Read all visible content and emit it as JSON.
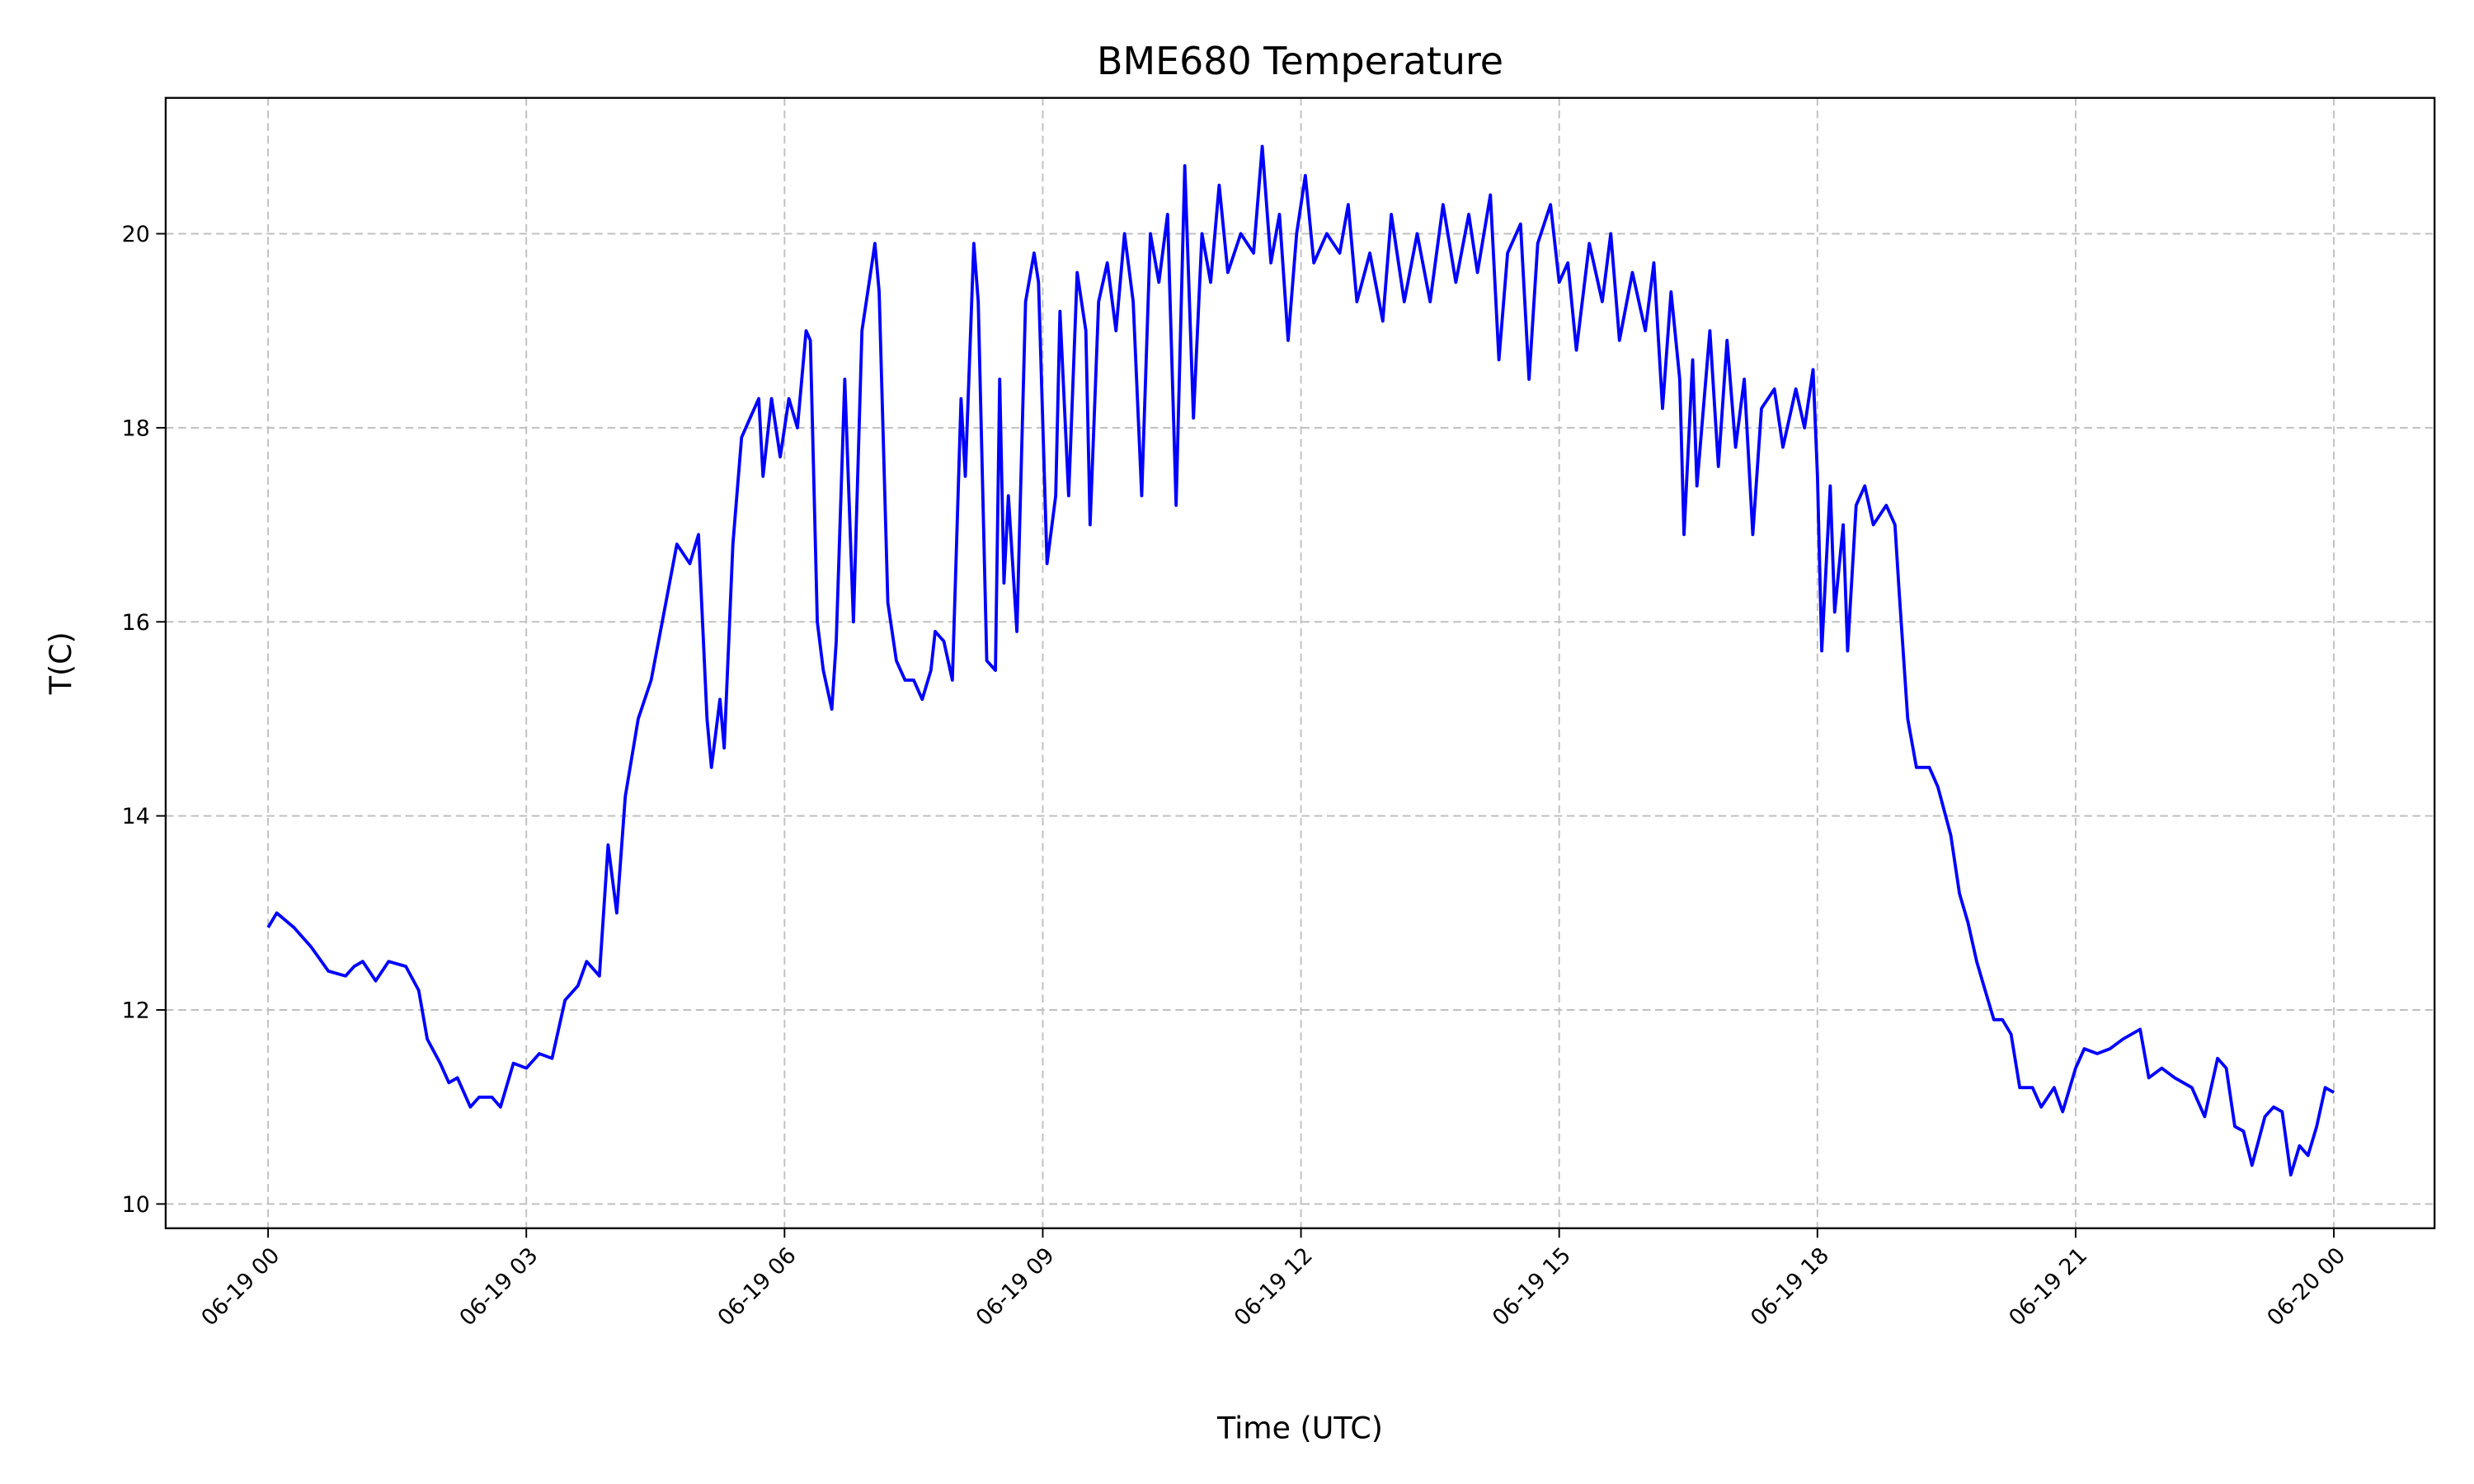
{
  "chart_data": {
    "type": "line",
    "title": "BME680 Temperature",
    "xlabel": "Time (UTC)",
    "ylabel": "T(C)",
    "xlim_hours": [
      -1.19,
      25.17
    ],
    "ylim": [
      9.75,
      21.4
    ],
    "grid": true,
    "x_tick_hours": [
      0,
      3,
      6,
      9,
      12,
      15,
      18,
      21,
      24
    ],
    "x_tick_labels": [
      "06-19 00",
      "06-19 03",
      "06-19 06",
      "06-19 09",
      "06-19 12",
      "06-19 15",
      "06-19 18",
      "06-19 21",
      "06-20 00"
    ],
    "y_ticks": [
      10,
      12,
      14,
      16,
      18,
      20
    ],
    "y_tick_labels": [
      "10",
      "12",
      "14",
      "16",
      "18",
      "20"
    ],
    "series": [
      {
        "name": "Temperature",
        "color": "#0000ff",
        "x_hours": [
          0,
          0.1,
          0.3,
          0.5,
          0.7,
          0.9,
          1.0,
          1.1,
          1.25,
          1.4,
          1.6,
          1.75,
          1.85,
          2.0,
          2.1,
          2.2,
          2.35,
          2.45,
          2.6,
          2.7,
          2.85,
          3.0,
          3.15,
          3.3,
          3.45,
          3.6,
          3.7,
          3.8,
          3.85,
          3.95,
          4.05,
          4.15,
          4.3,
          4.45,
          4.6,
          4.75,
          4.9,
          5.0,
          5.1,
          5.15,
          5.25,
          5.3,
          5.4,
          5.5,
          5.6,
          5.7,
          5.75,
          5.85,
          5.95,
          6.05,
          6.15,
          6.25,
          6.3,
          6.38,
          6.45,
          6.55,
          6.6,
          6.7,
          6.8,
          6.9,
          7.0,
          7.05,
          7.1,
          7.2,
          7.3,
          7.4,
          7.5,
          7.6,
          7.7,
          7.75,
          7.85,
          7.95,
          8.05,
          8.1,
          8.2,
          8.25,
          8.35,
          8.45,
          8.5,
          8.55,
          8.6,
          8.7,
          8.8,
          8.9,
          8.95,
          9.05,
          9.15,
          9.2,
          9.3,
          9.4,
          9.5,
          9.55,
          9.65,
          9.75,
          9.85,
          9.95,
          10.05,
          10.15,
          10.25,
          10.35,
          10.45,
          10.55,
          10.65,
          10.75,
          10.85,
          10.95,
          11.05,
          11.15,
          11.3,
          11.45,
          11.55,
          11.65,
          11.75,
          11.85,
          11.95,
          12.05,
          12.15,
          12.3,
          12.45,
          12.55,
          12.65,
          12.8,
          12.95,
          13.05,
          13.2,
          13.35,
          13.5,
          13.65,
          13.8,
          13.95,
          14.05,
          14.2,
          14.3,
          14.4,
          14.55,
          14.65,
          14.75,
          14.9,
          15.0,
          15.1,
          15.2,
          15.35,
          15.5,
          15.6,
          15.7,
          15.85,
          16.0,
          16.1,
          16.2,
          16.3,
          16.4,
          16.45,
          16.55,
          16.6,
          16.75,
          16.85,
          16.95,
          17.05,
          17.15,
          17.25,
          17.35,
          17.5,
          17.6,
          17.75,
          17.85,
          17.95,
          18.0,
          18.05,
          18.15,
          18.2,
          18.3,
          18.35,
          18.45,
          18.55,
          18.65,
          18.8,
          18.9,
          18.95,
          19.05,
          19.15,
          19.3,
          19.4,
          19.55,
          19.65,
          19.75,
          19.85,
          19.95,
          20.05,
          20.15,
          20.25,
          20.35,
          20.5,
          20.6,
          20.75,
          20.85,
          21.0,
          21.1,
          21.25,
          21.4,
          21.55,
          21.75,
          21.85,
          22.0,
          22.15,
          22.35,
          22.5,
          22.65,
          22.75,
          22.85,
          22.95,
          23.05,
          23.2,
          23.3,
          23.4,
          23.5,
          23.6,
          23.7,
          23.8,
          23.9,
          24.0
        ],
        "y": [
          12.85,
          13.0,
          12.85,
          12.65,
          12.4,
          12.35,
          12.45,
          12.5,
          12.3,
          12.5,
          12.45,
          12.2,
          11.7,
          11.45,
          11.25,
          11.3,
          11.0,
          11.1,
          11.1,
          11.0,
          11.45,
          11.4,
          11.55,
          11.5,
          12.1,
          12.25,
          12.5,
          12.4,
          12.35,
          13.7,
          13.0,
          14.2,
          15.0,
          15.4,
          16.1,
          16.8,
          16.6,
          16.9,
          15.0,
          14.5,
          15.2,
          14.7,
          16.8,
          17.9,
          18.1,
          18.3,
          17.5,
          18.3,
          17.7,
          18.3,
          18.0,
          19.0,
          18.9,
          16.0,
          15.5,
          15.1,
          15.8,
          18.5,
          16.0,
          19.0,
          19.6,
          19.9,
          19.4,
          16.2,
          15.6,
          15.4,
          15.4,
          15.2,
          15.5,
          15.9,
          15.8,
          15.4,
          18.3,
          17.5,
          19.9,
          19.3,
          15.6,
          15.5,
          18.5,
          16.4,
          17.3,
          15.9,
          19.3,
          19.8,
          19.5,
          16.6,
          17.3,
          19.2,
          17.3,
          19.6,
          19.0,
          17.0,
          19.3,
          19.7,
          19.0,
          20.0,
          19.3,
          17.3,
          20.0,
          19.5,
          20.2,
          17.2,
          20.7,
          18.1,
          20.0,
          19.5,
          20.5,
          19.6,
          20.0,
          19.8,
          20.9,
          19.7,
          20.2,
          18.9,
          20.0,
          20.6,
          19.7,
          20.0,
          19.8,
          20.3,
          19.3,
          19.8,
          19.1,
          20.2,
          19.3,
          20.0,
          19.3,
          20.3,
          19.5,
          20.2,
          19.6,
          20.4,
          18.7,
          19.8,
          20.1,
          18.5,
          19.9,
          20.3,
          19.5,
          19.7,
          18.8,
          19.9,
          19.3,
          20.0,
          18.9,
          19.6,
          19.0,
          19.7,
          18.2,
          19.4,
          18.5,
          16.9,
          18.7,
          17.4,
          19.0,
          17.6,
          18.9,
          17.8,
          18.5,
          16.9,
          18.2,
          18.4,
          17.8,
          18.4,
          18.0,
          18.6,
          17.5,
          15.7,
          17.4,
          16.1,
          17.0,
          15.7,
          17.2,
          17.4,
          17.0,
          17.2,
          17.0,
          16.3,
          15.0,
          14.5,
          14.5,
          14.3,
          13.8,
          13.2,
          12.9,
          12.5,
          12.2,
          11.9,
          11.9,
          11.75,
          11.2,
          11.2,
          11.0,
          11.2,
          10.95,
          11.4,
          11.6,
          11.55,
          11.6,
          11.7,
          11.8,
          11.3,
          11.4,
          11.3,
          11.2,
          10.9,
          11.5,
          11.4,
          10.8,
          10.75,
          10.4,
          10.9,
          11.0,
          10.95,
          10.3,
          10.6,
          10.5,
          10.8,
          11.2,
          11.15
        ]
      }
    ]
  }
}
